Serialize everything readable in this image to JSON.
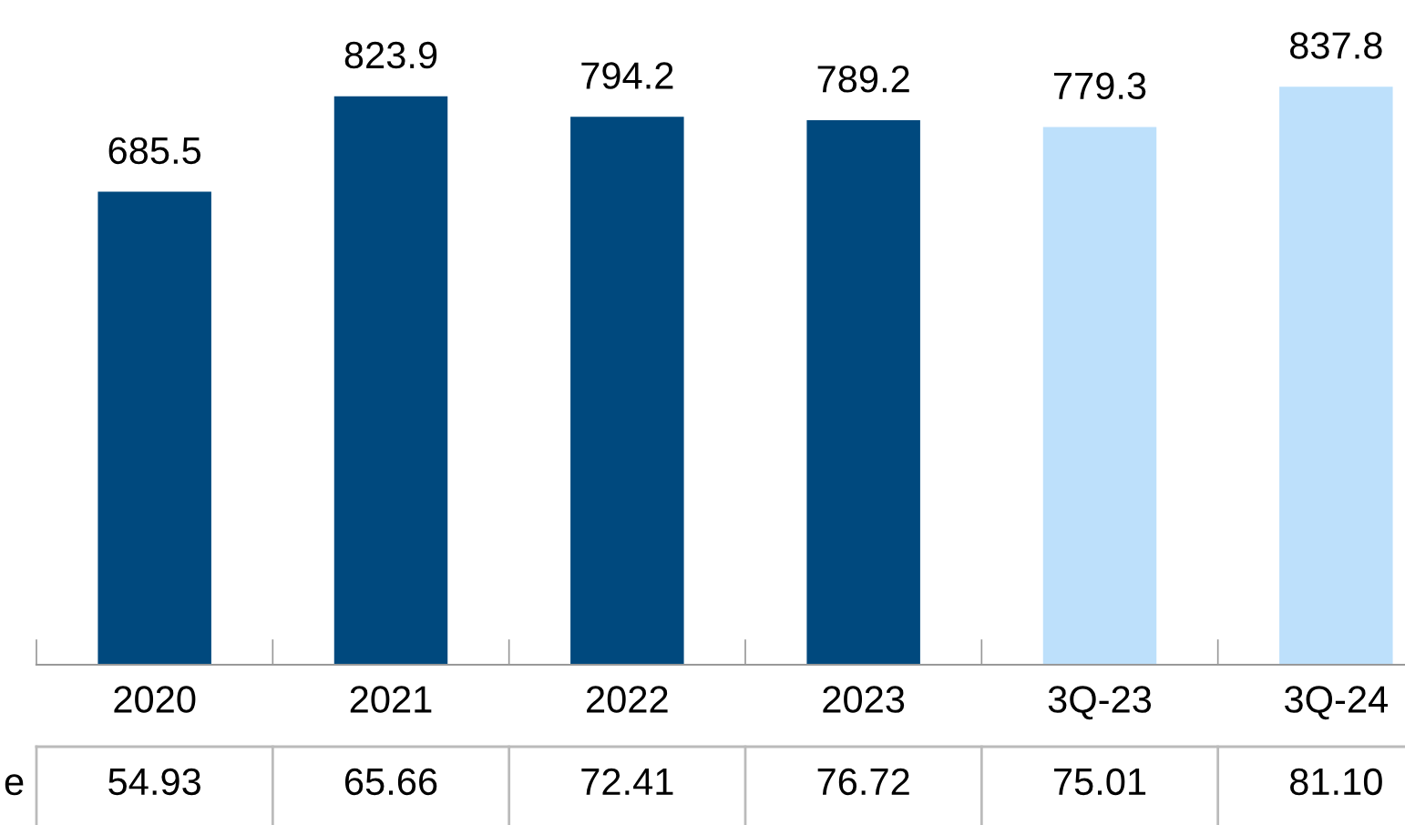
{
  "chart_data": {
    "type": "bar",
    "categories": [
      "2020",
      "2021",
      "2022",
      "2023",
      "3Q-23",
      "3Q-24"
    ],
    "values": [
      685.5,
      823.9,
      794.2,
      789.2,
      779.3,
      837.8
    ],
    "colors": [
      "#00497e",
      "#00497e",
      "#00497e",
      "#00497e",
      "#bde0fb",
      "#bde0fb"
    ],
    "data_labels": true,
    "annotations": [
      "e",
      "54.93",
      "65.66",
      "72.41",
      "76.72",
      "75.01",
      "81.10"
    ]
  }
}
